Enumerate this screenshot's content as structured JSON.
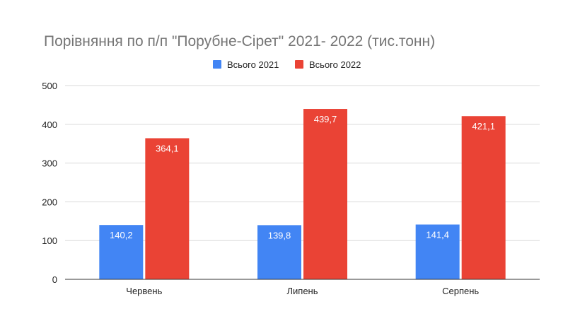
{
  "chart_data": {
    "type": "bar",
    "title": "Порівняння по п/п \"Порубне-Сірет\" 2021- 2022 (тис.тонн)",
    "categories": [
      "Червень",
      "Липень",
      "Серпень"
    ],
    "series": [
      {
        "name": "Всього 2021",
        "color": "#4285f4",
        "values": [
          140.2,
          139.8,
          141.4
        ],
        "labels": [
          "140,2",
          "139,8",
          "141,4"
        ]
      },
      {
        "name": "Всього 2022",
        "color": "#ea4335",
        "values": [
          364.1,
          439.7,
          421.1
        ],
        "labels": [
          "364,1",
          "439,7",
          "421,1"
        ]
      }
    ],
    "yticks": [
      0,
      100,
      200,
      300,
      400,
      500
    ],
    "ylim": [
      0,
      500
    ],
    "xlabel": "",
    "ylabel": "",
    "grid": true,
    "legend_position": "top"
  }
}
